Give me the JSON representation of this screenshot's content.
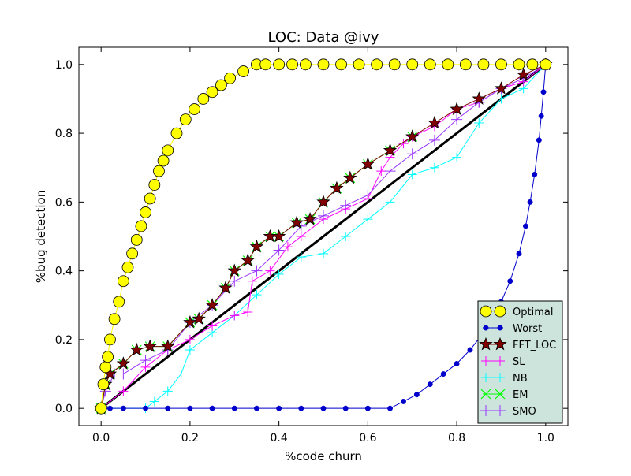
{
  "chart_data": {
    "type": "line",
    "title": "LOC: Data @ivy",
    "xlabel": "%code churn",
    "ylabel": "%bug detection",
    "xlim": [
      -0.05,
      1.05
    ],
    "ylim": [
      -0.05,
      1.05
    ],
    "grid": false,
    "legend_position": "bottom-right",
    "x_ticks": [
      0.0,
      0.2,
      0.4,
      0.6,
      0.8,
      1.0
    ],
    "x_tick_labels": [
      "0.0",
      "0.2",
      "0.4",
      "0.6",
      "0.8",
      "1.0"
    ],
    "y_ticks": [
      0.0,
      0.2,
      0.4,
      0.6,
      0.8,
      1.0
    ],
    "y_tick_labels": [
      "0.0",
      "0.2",
      "0.4",
      "0.6",
      "0.8",
      "1.0"
    ],
    "series": [
      {
        "name": "Optimal",
        "color": "#ffff00",
        "edge": "#000000",
        "marker": "circle-large",
        "x": [
          0,
          0.005,
          0.01,
          0.015,
          0.02,
          0.03,
          0.04,
          0.05,
          0.06,
          0.07,
          0.08,
          0.09,
          0.1,
          0.11,
          0.12,
          0.13,
          0.14,
          0.15,
          0.17,
          0.19,
          0.21,
          0.23,
          0.25,
          0.27,
          0.29,
          0.32,
          0.35,
          0.37,
          0.4,
          0.43,
          0.46,
          0.5,
          0.54,
          0.58,
          0.62,
          0.66,
          0.7,
          0.74,
          0.78,
          0.82,
          0.86,
          0.9,
          0.94,
          0.97,
          1.0
        ],
        "y": [
          0,
          0.07,
          0.12,
          0.15,
          0.2,
          0.26,
          0.31,
          0.37,
          0.41,
          0.45,
          0.49,
          0.53,
          0.57,
          0.61,
          0.65,
          0.69,
          0.72,
          0.75,
          0.8,
          0.84,
          0.87,
          0.9,
          0.92,
          0.94,
          0.96,
          0.98,
          1.0,
          1.0,
          1.0,
          1.0,
          1.0,
          1.0,
          1.0,
          1.0,
          1.0,
          1.0,
          1.0,
          1.0,
          1.0,
          1.0,
          1.0,
          1.0,
          1.0,
          1.0,
          1.0
        ]
      },
      {
        "name": "Worst",
        "color": "#0000cc",
        "marker": "dot",
        "x": [
          0,
          0.02,
          0.05,
          0.1,
          0.15,
          0.2,
          0.25,
          0.3,
          0.35,
          0.4,
          0.45,
          0.5,
          0.55,
          0.6,
          0.65,
          0.68,
          0.71,
          0.74,
          0.77,
          0.8,
          0.83,
          0.86,
          0.88,
          0.9,
          0.92,
          0.94,
          0.955,
          0.965,
          0.975,
          0.985,
          0.99,
          0.995,
          1.0
        ],
        "y": [
          0,
          0,
          0,
          0,
          0,
          0,
          0,
          0,
          0,
          0,
          0,
          0,
          0,
          0,
          0,
          0.02,
          0.04,
          0.07,
          0.1,
          0.13,
          0.17,
          0.22,
          0.26,
          0.31,
          0.37,
          0.45,
          0.53,
          0.6,
          0.68,
          0.78,
          0.85,
          0.92,
          1.0
        ]
      },
      {
        "name": "FFT_LOC",
        "color": "#800000",
        "edge": "#000000",
        "marker": "star",
        "x": [
          0,
          0.01,
          0.02,
          0.05,
          0.08,
          0.11,
          0.15,
          0.2,
          0.22,
          0.25,
          0.28,
          0.3,
          0.33,
          0.35,
          0.38,
          0.4,
          0.44,
          0.47,
          0.5,
          0.53,
          0.56,
          0.6,
          0.65,
          0.7,
          0.75,
          0.8,
          0.85,
          0.9,
          0.95,
          1.0
        ],
        "y": [
          0,
          0.07,
          0.1,
          0.13,
          0.17,
          0.18,
          0.18,
          0.25,
          0.26,
          0.3,
          0.35,
          0.4,
          0.43,
          0.47,
          0.5,
          0.5,
          0.54,
          0.55,
          0.6,
          0.64,
          0.67,
          0.71,
          0.75,
          0.79,
          0.83,
          0.87,
          0.9,
          0.93,
          0.97,
          1.0
        ]
      },
      {
        "name": "SL",
        "color": "#ff00ff",
        "marker": "tick",
        "x": [
          0,
          0.05,
          0.1,
          0.15,
          0.2,
          0.25,
          0.3,
          0.33,
          0.34,
          0.38,
          0.42,
          0.45,
          0.5,
          0.55,
          0.6,
          0.63,
          0.65,
          0.68,
          0.7,
          0.75,
          0.8,
          0.85,
          0.9,
          0.95,
          1.0
        ],
        "y": [
          0,
          0.05,
          0.12,
          0.17,
          0.2,
          0.24,
          0.27,
          0.28,
          0.37,
          0.4,
          0.47,
          0.5,
          0.55,
          0.58,
          0.61,
          0.69,
          0.73,
          0.77,
          0.79,
          0.82,
          0.87,
          0.89,
          0.93,
          0.95,
          1.0
        ]
      },
      {
        "name": "NB",
        "color": "#00ffff",
        "marker": "tick",
        "x": [
          0,
          0.1,
          0.12,
          0.15,
          0.18,
          0.2,
          0.25,
          0.3,
          0.35,
          0.4,
          0.45,
          0.5,
          0.55,
          0.6,
          0.65,
          0.7,
          0.75,
          0.8,
          0.85,
          0.9,
          0.95,
          1.0
        ],
        "y": [
          0,
          0.0,
          0.02,
          0.05,
          0.1,
          0.17,
          0.22,
          0.27,
          0.33,
          0.39,
          0.44,
          0.45,
          0.5,
          0.55,
          0.6,
          0.68,
          0.7,
          0.73,
          0.83,
          0.9,
          0.93,
          1.0
        ]
      },
      {
        "name": "EM",
        "color": "#00ff00",
        "marker": "x",
        "x": [
          0,
          0.01,
          0.02,
          0.05,
          0.08,
          0.11,
          0.15,
          0.2,
          0.22,
          0.25,
          0.28,
          0.3,
          0.33,
          0.35,
          0.38,
          0.4,
          0.44,
          0.47,
          0.5,
          0.53,
          0.56,
          0.6,
          0.65,
          0.7
        ],
        "y": [
          0,
          0.07,
          0.1,
          0.13,
          0.17,
          0.18,
          0.18,
          0.25,
          0.26,
          0.3,
          0.35,
          0.4,
          0.43,
          0.47,
          0.5,
          0.5,
          0.54,
          0.55,
          0.6,
          0.64,
          0.67,
          0.71,
          0.75,
          0.79
        ]
      },
      {
        "name": "SMO",
        "color": "#9933ff",
        "marker": "plus",
        "x": [
          0,
          0.01,
          0.03,
          0.05,
          0.1,
          0.15,
          0.2,
          0.25,
          0.3,
          0.35,
          0.4,
          0.45,
          0.5,
          0.55,
          0.6,
          0.65,
          0.7,
          0.75,
          0.8,
          0.85,
          0.9,
          0.95,
          1.0
        ],
        "y": [
          0,
          0.05,
          0.1,
          0.1,
          0.14,
          0.17,
          0.25,
          0.3,
          0.37,
          0.4,
          0.46,
          0.53,
          0.56,
          0.59,
          0.62,
          0.69,
          0.74,
          0.78,
          0.84,
          0.89,
          0.93,
          0.96,
          1.0
        ]
      },
      {
        "name": "",
        "color": "#000000",
        "marker": "none",
        "legend": false,
        "x": [
          0,
          1
        ],
        "y": [
          0,
          1
        ]
      }
    ]
  }
}
